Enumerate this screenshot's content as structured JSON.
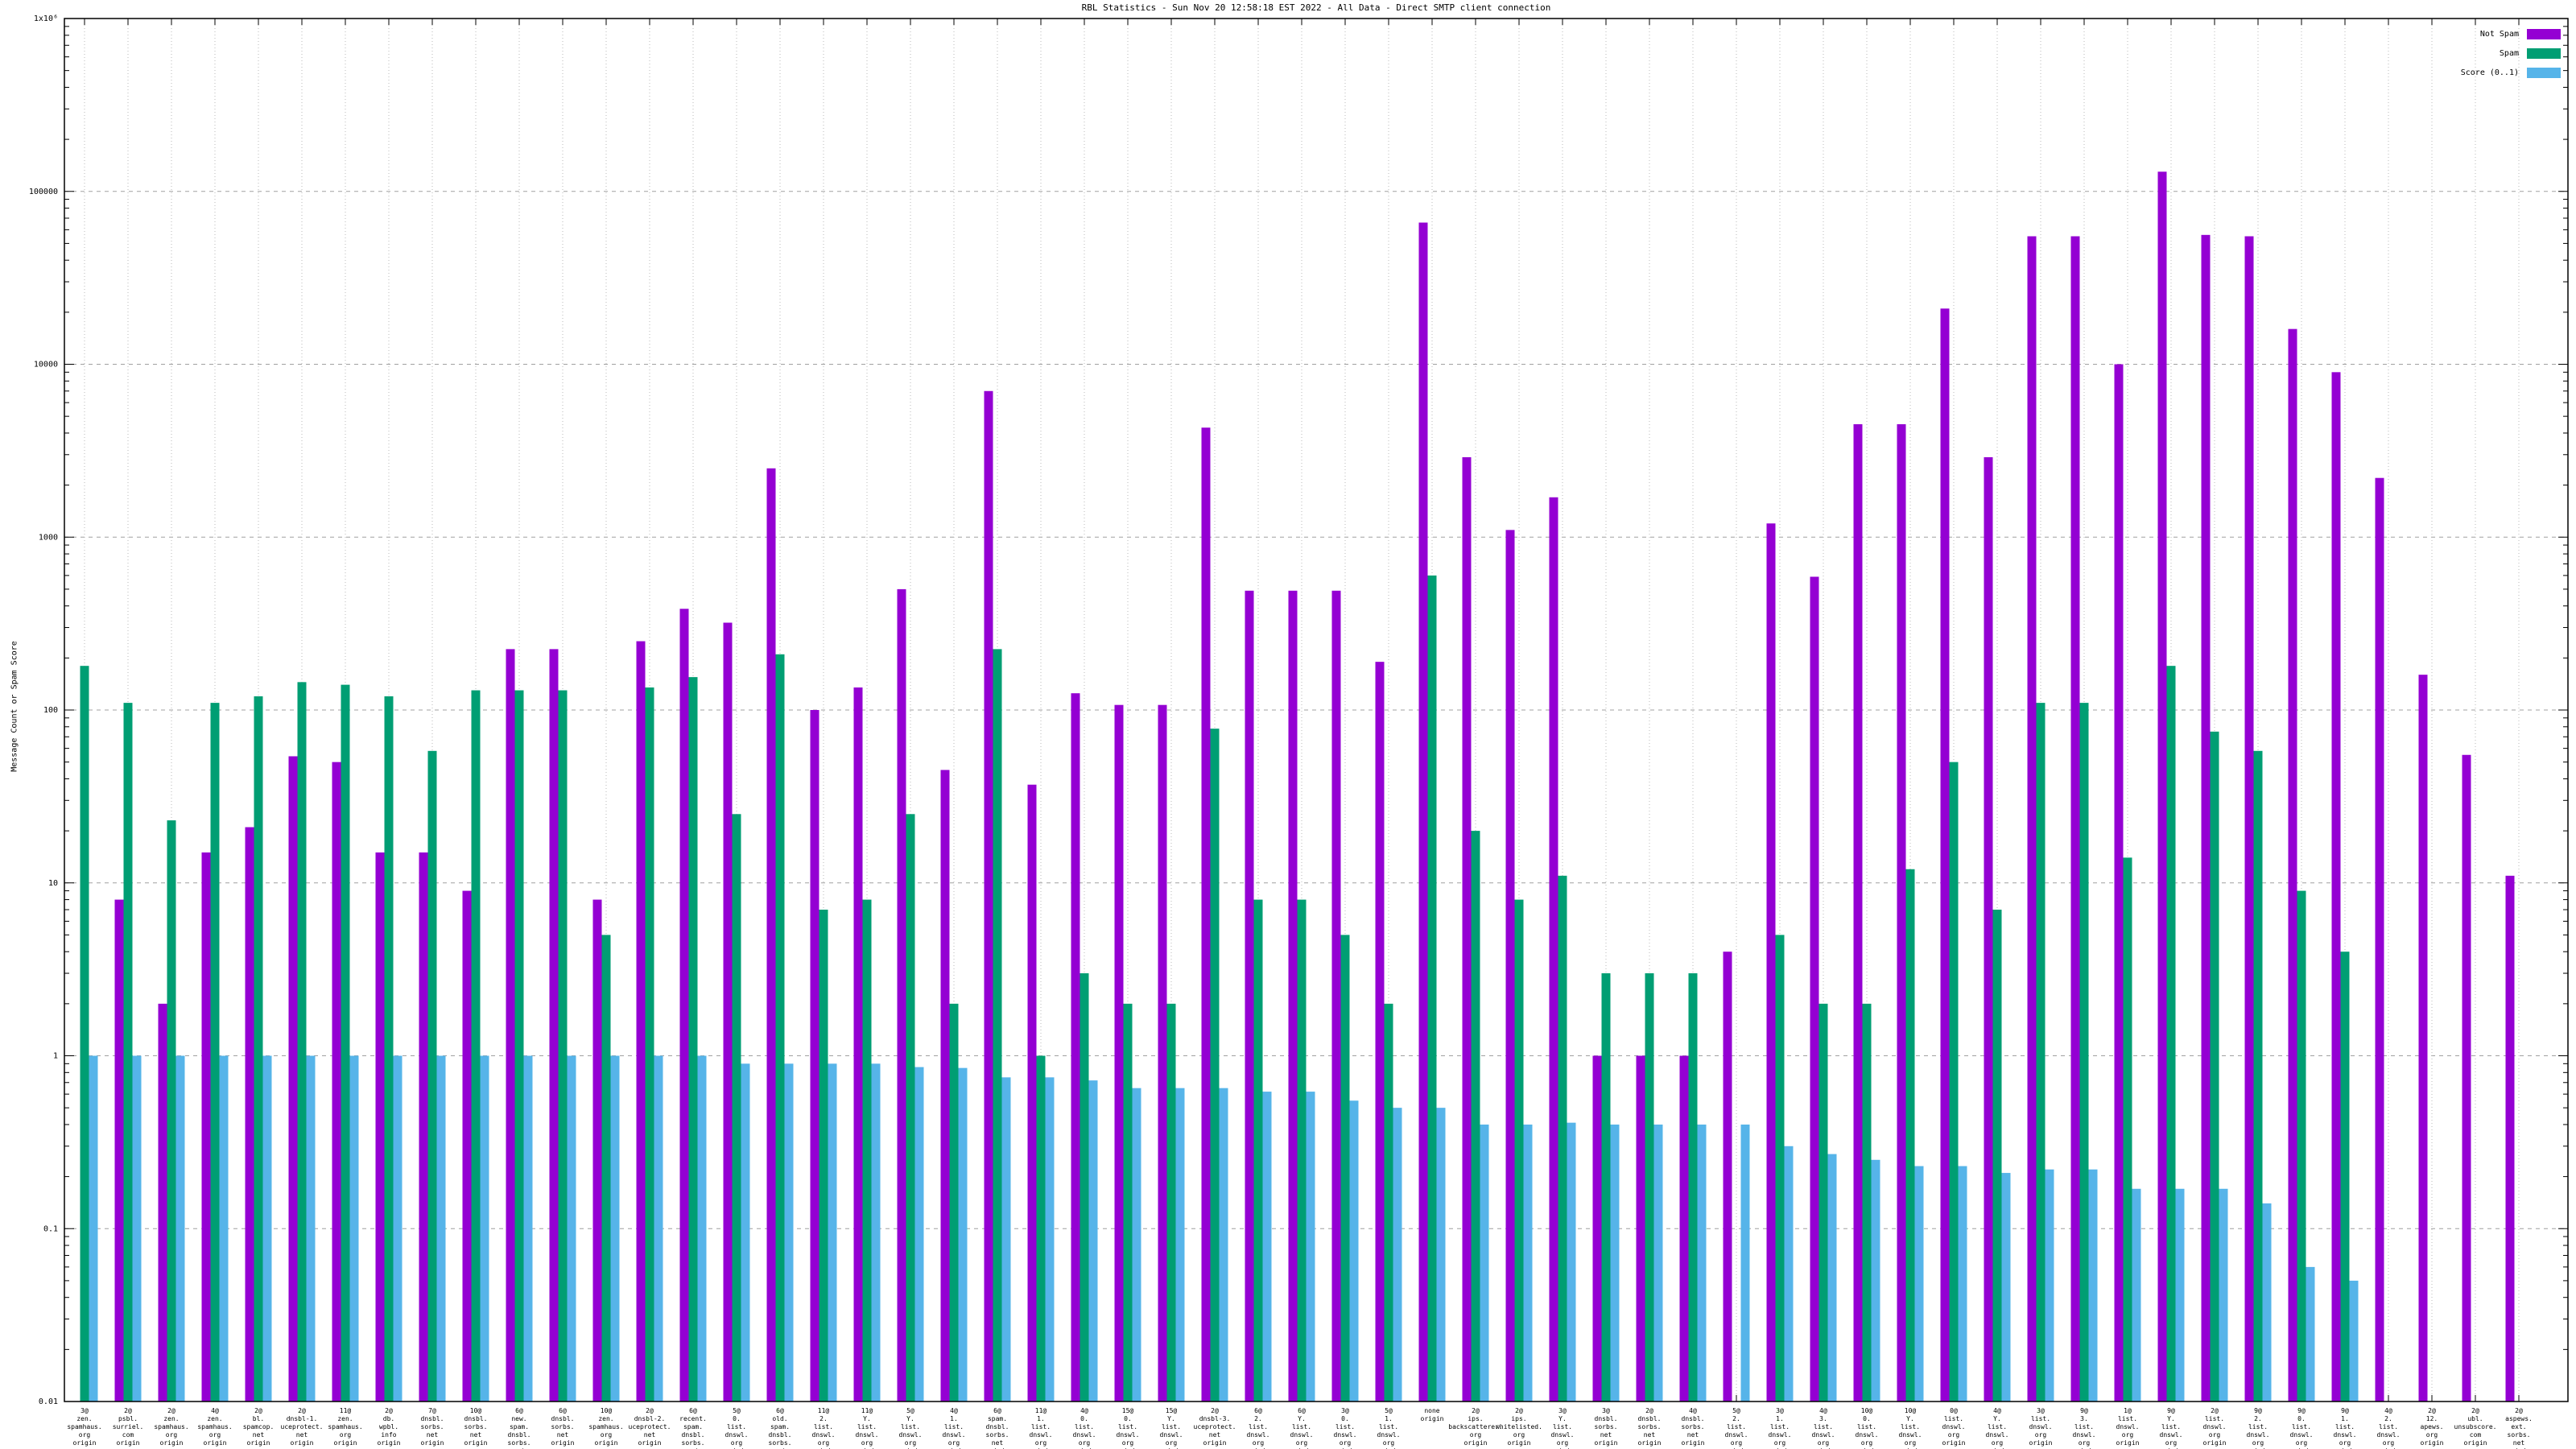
{
  "title": "RBL Statistics - Sun Nov 20 12:58:18 EST 2022 - All Data - Direct SMTP client connection",
  "y_axis_label": "Message Count or Spam Score",
  "colors": {
    "not_spam": "#9400d3",
    "spam": "#009e73",
    "score": "#56b4e9",
    "grid_h": "#a0a0a0",
    "grid_v": "#b8b8b8",
    "axis": "#000000"
  },
  "legend": {
    "items": [
      {
        "label": "Not Spam",
        "color": "#9400d3"
      },
      {
        "label": "Spam",
        "color": "#009e73"
      },
      {
        "label": "Score (0..1)",
        "color": "#56b4e9"
      }
    ]
  },
  "chart_data": {
    "type": "bar",
    "title": "RBL Statistics - Sun Nov 20 12:58:18 EST 2022 - All Data - Direct SMTP client connection",
    "xlabel": "",
    "ylabel": "Message Count or Spam Score",
    "y_scale": "log",
    "ylim": [
      0.01,
      1000000
    ],
    "y_ticks": [
      {
        "value": 1000000,
        "label": "1x10⁶"
      },
      {
        "value": 100000,
        "label": "100000"
      },
      {
        "value": 10000,
        "label": "10000"
      },
      {
        "value": 1000,
        "label": "1000"
      },
      {
        "value": 100,
        "label": "100"
      },
      {
        "value": 10,
        "label": "10"
      },
      {
        "value": 1,
        "label": "1"
      },
      {
        "value": 0.1,
        "label": "0.1"
      },
      {
        "value": 0.01,
        "label": "0.01"
      }
    ],
    "grid": true,
    "legend_position": "top-right",
    "series_names": [
      "Not Spam",
      "Spam",
      "Score (0..1)"
    ],
    "groups": [
      {
        "label": [
          "3@",
          "zen.",
          "spamhaus.",
          "org",
          "origin"
        ],
        "not_spam": 0,
        "spam": 180,
        "score": 1.0
      },
      {
        "label": [
          "2@",
          "psbl.",
          "surriel.",
          "com",
          "origin"
        ],
        "not_spam": 8,
        "spam": 110,
        "score": 1.0
      },
      {
        "label": [
          "2@",
          "zen.",
          "spamhaus.",
          "org",
          "origin"
        ],
        "not_spam": 2,
        "spam": 23,
        "score": 1.0
      },
      {
        "label": [
          "4@",
          "zen.",
          "spamhaus.",
          "org",
          "origin"
        ],
        "not_spam": 15,
        "spam": 110,
        "score": 1.0
      },
      {
        "label": [
          "2@",
          "bl.",
          "spamcop.",
          "net",
          "origin"
        ],
        "not_spam": 21,
        "spam": 120,
        "score": 1.0
      },
      {
        "label": [
          "2@",
          "dnsbl-1.",
          "uceprotect.",
          "net",
          "origin"
        ],
        "not_spam": 54,
        "spam": 145,
        "score": 1.0
      },
      {
        "label": [
          "11@",
          "zen.",
          "spamhaus.",
          "org",
          "origin"
        ],
        "not_spam": 50,
        "spam": 140,
        "score": 1.0
      },
      {
        "label": [
          "2@",
          "db.",
          "wpbl.",
          "info",
          "origin"
        ],
        "not_spam": 15,
        "spam": 120,
        "score": 1.0
      },
      {
        "label": [
          "7@",
          "dnsbl.",
          "sorbs.",
          "net",
          "origin"
        ],
        "not_spam": 15,
        "spam": 58,
        "score": 1.0
      },
      {
        "label": [
          "10@",
          "dnsbl.",
          "sorbs.",
          "net",
          "origin"
        ],
        "not_spam": 9,
        "spam": 130,
        "score": 1.0
      },
      {
        "label": [
          "6@",
          "new.",
          "spam.",
          "dnsbl.",
          "sorbs.",
          "net",
          "origin"
        ],
        "not_spam": 225,
        "spam": 130,
        "score": 1.0
      },
      {
        "label": [
          "6@",
          "dnsbl.",
          "sorbs.",
          "net",
          "origin"
        ],
        "not_spam": 225,
        "spam": 130,
        "score": 1.0
      },
      {
        "label": [
          "10@",
          "zen.",
          "spamhaus.",
          "org",
          "origin"
        ],
        "not_spam": 8,
        "spam": 5,
        "score": 1.0
      },
      {
        "label": [
          "2@",
          "dnsbl-2.",
          "uceprotect.",
          "net",
          "origin"
        ],
        "not_spam": 250,
        "spam": 135,
        "score": 1.0
      },
      {
        "label": [
          "6@",
          "recent.",
          "spam.",
          "dnsbl.",
          "sorbs.",
          "net",
          "origin"
        ],
        "not_spam": 385,
        "spam": 155,
        "score": 1.0
      },
      {
        "label": [
          "5@",
          "0.",
          "list.",
          "dnswl.",
          "org",
          "origin"
        ],
        "not_spam": 320,
        "spam": 25,
        "score": 0.9
      },
      {
        "label": [
          "6@",
          "old.",
          "spam.",
          "dnsbl.",
          "sorbs.",
          "net",
          "origin"
        ],
        "not_spam": 2500,
        "spam": 210,
        "score": 0.9
      },
      {
        "label": [
          "11@",
          "2.",
          "list.",
          "dnswl.",
          "org",
          "origin"
        ],
        "not_spam": 100,
        "spam": 7,
        "score": 0.9
      },
      {
        "label": [
          "11@",
          "Y.",
          "list.",
          "dnswl.",
          "org",
          "origin"
        ],
        "not_spam": 135,
        "spam": 8,
        "score": 0.9
      },
      {
        "label": [
          "5@",
          "Y.",
          "list.",
          "dnswl.",
          "org",
          "origin"
        ],
        "not_spam": 500,
        "spam": 25,
        "score": 0.86
      },
      {
        "label": [
          "4@",
          "1.",
          "list.",
          "dnswl.",
          "org",
          "origin"
        ],
        "not_spam": 45,
        "spam": 2,
        "score": 0.85
      },
      {
        "label": [
          "6@",
          "spam.",
          "dnsbl.",
          "sorbs.",
          "net",
          "origin"
        ],
        "not_spam": 7000,
        "spam": 225,
        "score": 0.75
      },
      {
        "label": [
          "11@",
          "1.",
          "list.",
          "dnswl.",
          "org",
          "origin"
        ],
        "not_spam": 37,
        "spam": 1,
        "score": 0.75
      },
      {
        "label": [
          "4@",
          "0.",
          "list.",
          "dnswl.",
          "org",
          "origin"
        ],
        "not_spam": 125,
        "spam": 3,
        "score": 0.72
      },
      {
        "label": [
          "15@",
          "0.",
          "list.",
          "dnswl.",
          "org",
          "origin"
        ],
        "not_spam": 107,
        "spam": 2,
        "score": 0.65
      },
      {
        "label": [
          "15@",
          "Y.",
          "list.",
          "dnswl.",
          "org",
          "origin"
        ],
        "not_spam": 107,
        "spam": 2,
        "score": 0.65
      },
      {
        "label": [
          "2@",
          "dnsbl-3.",
          "uceprotect.",
          "net",
          "origin"
        ],
        "not_spam": 4300,
        "spam": 78,
        "score": 0.65
      },
      {
        "label": [
          "6@",
          "2.",
          "list.",
          "dnswl.",
          "org",
          "origin"
        ],
        "not_spam": 490,
        "spam": 8,
        "score": 0.62
      },
      {
        "label": [
          "6@",
          "Y.",
          "list.",
          "dnswl.",
          "org",
          "origin"
        ],
        "not_spam": 490,
        "spam": 8,
        "score": 0.62
      },
      {
        "label": [
          "3@",
          "0.",
          "list.",
          "dnswl.",
          "org",
          "origin"
        ],
        "not_spam": 490,
        "spam": 5,
        "score": 0.55
      },
      {
        "label": [
          "5@",
          "1.",
          "list.",
          "dnswl.",
          "org",
          "origin"
        ],
        "not_spam": 190,
        "spam": 2,
        "score": 0.5
      },
      {
        "label": [
          "none",
          "origin"
        ],
        "not_spam": 66000,
        "spam": 600,
        "score": 0.5
      },
      {
        "label": [
          "2@",
          "ips.",
          "backscatterer.",
          "org",
          "origin"
        ],
        "not_spam": 2900,
        "spam": 20,
        "score": 0.4
      },
      {
        "label": [
          "2@",
          "ips.",
          "whitelisted.",
          "org",
          "origin"
        ],
        "not_spam": 1100,
        "spam": 8,
        "score": 0.4
      },
      {
        "label": [
          "3@",
          "Y.",
          "list.",
          "dnswl.",
          "org",
          "origin"
        ],
        "not_spam": 1700,
        "spam": 11,
        "score": 0.41
      },
      {
        "label": [
          "3@",
          "dnsbl.",
          "sorbs.",
          "net",
          "origin"
        ],
        "not_spam": 1,
        "spam": 3,
        "score": 0.4
      },
      {
        "label": [
          "2@",
          "dnsbl.",
          "sorbs.",
          "net",
          "origin"
        ],
        "not_spam": 1,
        "spam": 3,
        "score": 0.4
      },
      {
        "label": [
          "4@",
          "dnsbl.",
          "sorbs.",
          "net",
          "origin"
        ],
        "not_spam": 1,
        "spam": 3,
        "score": 0.4
      },
      {
        "label": [
          "5@",
          "2.",
          "list.",
          "dnswl.",
          "org",
          "origin"
        ],
        "not_spam": 4,
        "spam": 0,
        "score": 0.4
      },
      {
        "label": [
          "3@",
          "1.",
          "list.",
          "dnswl.",
          "org",
          "origin"
        ],
        "not_spam": 1200,
        "spam": 5,
        "score": 0.3
      },
      {
        "label": [
          "4@",
          "3.",
          "list.",
          "dnswl.",
          "org",
          "origin"
        ],
        "not_spam": 590,
        "spam": 2,
        "score": 0.27
      },
      {
        "label": [
          "10@",
          "0.",
          "list.",
          "dnswl.",
          "org",
          "origin"
        ],
        "not_spam": 4500,
        "spam": 2,
        "score": 0.25
      },
      {
        "label": [
          "10@",
          "Y.",
          "list.",
          "dnswl.",
          "org",
          "origin"
        ],
        "not_spam": 4500,
        "spam": 12,
        "score": 0.23
      },
      {
        "label": [
          "0@",
          "list.",
          "dnswl.",
          "org",
          "origin"
        ],
        "not_spam": 21000,
        "spam": 50,
        "score": 0.23
      },
      {
        "label": [
          "4@",
          "Y.",
          "list.",
          "dnswl.",
          "org",
          "origin"
        ],
        "not_spam": 2900,
        "spam": 7,
        "score": 0.21
      },
      {
        "label": [
          "3@",
          "list.",
          "dnswl.",
          "org",
          "origin"
        ],
        "not_spam": 55000,
        "spam": 110,
        "score": 0.22
      },
      {
        "label": [
          "9@",
          "3.",
          "list.",
          "dnswl.",
          "org",
          "origin"
        ],
        "not_spam": 55000,
        "spam": 110,
        "score": 0.22
      },
      {
        "label": [
          "1@",
          "list.",
          "dnswl.",
          "org",
          "origin"
        ],
        "not_spam": 10000,
        "spam": 14,
        "score": 0.17
      },
      {
        "label": [
          "9@",
          "Y.",
          "list.",
          "dnswl.",
          "org",
          "origin"
        ],
        "not_spam": 130000,
        "spam": 180,
        "score": 0.17
      },
      {
        "label": [
          "2@",
          "list.",
          "dnswl.",
          "org",
          "origin"
        ],
        "not_spam": 56000,
        "spam": 75,
        "score": 0.17
      },
      {
        "label": [
          "9@",
          "2.",
          "list.",
          "dnswl.",
          "org",
          "origin"
        ],
        "not_spam": 55000,
        "spam": 58,
        "score": 0.14
      },
      {
        "label": [
          "9@",
          "0.",
          "list.",
          "dnswl.",
          "org",
          "origin"
        ],
        "not_spam": 16000,
        "spam": 9,
        "score": 0.06
      },
      {
        "label": [
          "9@",
          "1.",
          "list.",
          "dnswl.",
          "org",
          "origin"
        ],
        "not_spam": 9000,
        "spam": 4,
        "score": 0.05
      },
      {
        "label": [
          "4@",
          "2.",
          "list.",
          "dnswl.",
          "org",
          "origin"
        ],
        "not_spam": 2200,
        "spam": 0,
        "score": 0
      },
      {
        "label": [
          "2@",
          "12.",
          "apews.",
          "org",
          "origin"
        ],
        "not_spam": 160,
        "spam": 0,
        "score": 0
      },
      {
        "label": [
          "2@",
          "ubl.",
          "unsubscore.",
          "com",
          "origin"
        ],
        "not_spam": 55,
        "spam": 0,
        "score": 0
      },
      {
        "label": [
          "2@",
          "aspews.",
          "ext.",
          "sorbs.",
          "net",
          "origin"
        ],
        "not_spam": 11,
        "spam": 0,
        "score": 0
      }
    ]
  }
}
